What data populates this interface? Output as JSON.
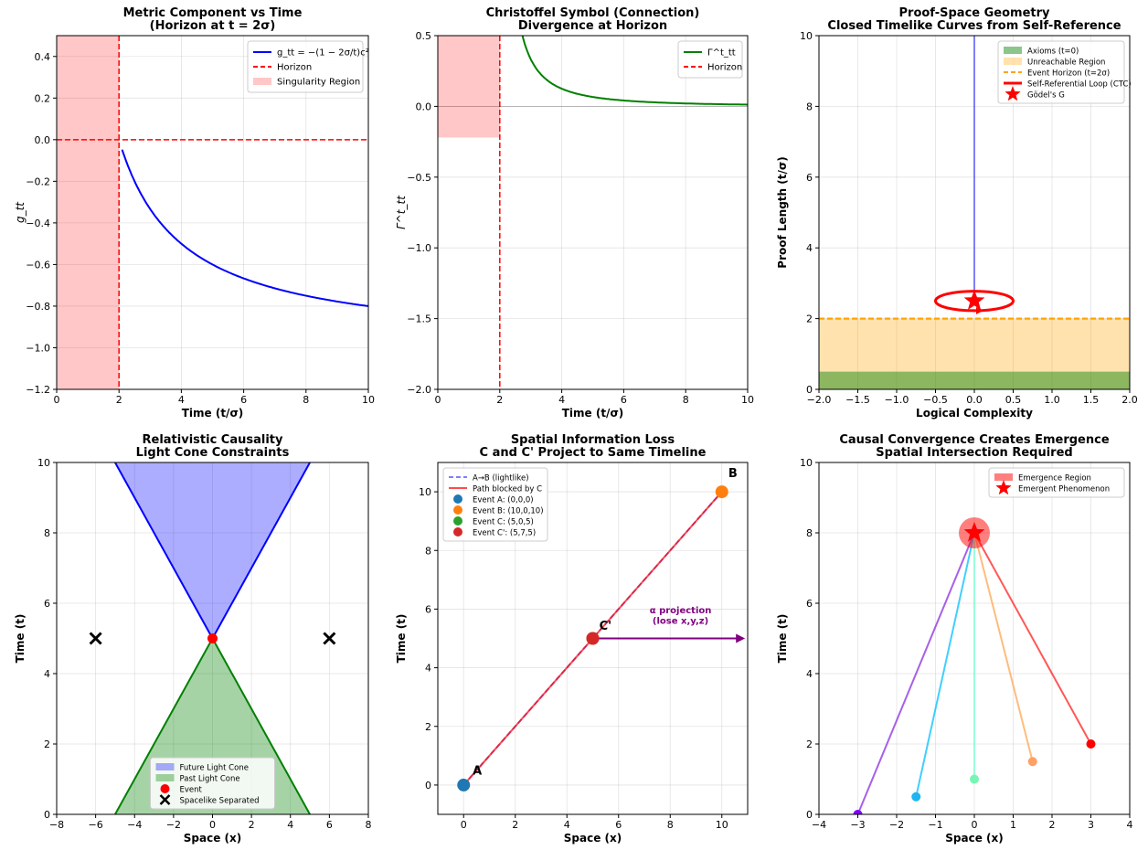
{
  "chart_data": [
    {
      "type": "line",
      "title": [
        "Metric Component vs Time",
        "(Horizon at t = 2σ)"
      ],
      "xlabel": "Time (t/σ)",
      "ylabel": "g_tt",
      "xlim": [
        0,
        10
      ],
      "ylim": [
        -1.2,
        0.5
      ],
      "xticks": [
        0,
        2,
        4,
        6,
        8,
        10
      ],
      "xtick_labels": [
        "0",
        "2",
        "4",
        "6",
        "8",
        "10"
      ],
      "yticks": [
        -1.2,
        -1.0,
        -0.8,
        -0.6,
        -0.4,
        -0.2,
        0.0,
        0.2,
        0.4
      ],
      "ytick_labels": [
        "−1.2",
        "−1.0",
        "−0.8",
        "−0.6",
        "−0.4",
        "−0.2",
        "0.0",
        "0.2",
        "0.4"
      ],
      "grid": true,
      "legend_position": "top-right",
      "series": [
        {
          "name": "g_tt = −(1 − 2σ/t)c²",
          "kind": "line",
          "color": "#0000ff",
          "function": "metric",
          "x_range": [
            2.1,
            10
          ]
        },
        {
          "name": "Horizon",
          "kind": "hline",
          "color": "#ff0000",
          "style": "dashed",
          "y": 0.0
        },
        {
          "kind": "vline",
          "color": "#ff0000",
          "style": "dashed",
          "x": 2
        },
        {
          "name": "Singularity Region",
          "kind": "span",
          "color": "#ff0000",
          "opacity": 0.22,
          "x": [
            0,
            2
          ]
        }
      ]
    },
    {
      "type": "line",
      "title": [
        "Christoffel Symbol (Connection)",
        "Divergence at Horizon"
      ],
      "xlabel": "Time (t/σ)",
      "ylabel": "Γ^t_tt",
      "xlim": [
        0,
        10
      ],
      "ylim": [
        -2.0,
        0.5
      ],
      "xticks": [
        0,
        2,
        4,
        6,
        8,
        10
      ],
      "xtick_labels": [
        "0",
        "2",
        "4",
        "6",
        "8",
        "10"
      ],
      "yticks": [
        -2.0,
        -1.5,
        -1.0,
        -0.5,
        0.0,
        0.5
      ],
      "ytick_labels": [
        "−2.0",
        "−1.5",
        "−1.0",
        "−0.5",
        "0.0",
        "0.5"
      ],
      "grid": true,
      "legend_position": "top-right",
      "series": [
        {
          "name": "Γ^t_tt",
          "kind": "line",
          "color": "#008000",
          "function": "christoffel",
          "x_range": [
            2.1,
            10
          ]
        },
        {
          "name": "Horizon",
          "kind": "vline",
          "color": "#ff0000",
          "style": "dashed",
          "x": 2
        },
        {
          "kind": "hline",
          "color": "#000000",
          "opacity": 0.3,
          "width": 0.8,
          "y": 0.0
        },
        {
          "kind": "rect",
          "color": "#ff0000",
          "opacity": 0.22,
          "x": [
            0,
            2
          ],
          "y": [
            -0.22,
            0.5
          ]
        }
      ]
    },
    {
      "type": "line",
      "title": [
        "Proof-Space Geometry",
        "Closed Timelike Curves from Self-Reference"
      ],
      "xlabel": "Logical Complexity",
      "ylabel": "Proof Length (t/σ)",
      "xlim": [
        -2.0,
        2.0
      ],
      "ylim": [
        0,
        10
      ],
      "xticks": [
        -2.0,
        -1.5,
        -1.0,
        -0.5,
        0.0,
        0.5,
        1.0,
        1.5,
        2.0
      ],
      "xtick_labels": [
        "−2.0",
        "−1.5",
        "−1.0",
        "−0.5",
        "0.0",
        "0.5",
        "1.0",
        "1.5",
        "2.0"
      ],
      "yticks": [
        0,
        2,
        4,
        6,
        8,
        10
      ],
      "ytick_labels": [
        "0",
        "2",
        "4",
        "6",
        "8",
        "10"
      ],
      "grid": true,
      "legend_position": "top-right",
      "series": [
        {
          "kind": "rect",
          "color": "#ffa500",
          "opacity": 0.32,
          "x": [
            -2,
            2
          ],
          "y": [
            0,
            2
          ]
        },
        {
          "name": "Axioms (t=0)",
          "kind": "rect",
          "color": "#008000",
          "opacity": 0.45,
          "x": [
            -2,
            2
          ],
          "y": [
            0,
            0.5
          ]
        },
        {
          "name": "Unreachable Region",
          "kind": "legend-only",
          "color": "#ffa500",
          "opacity": 0.32
        },
        {
          "kind": "vsegment",
          "color": "#0000ff",
          "opacity": 0.6,
          "x": 0,
          "y": [
            2.5,
            10
          ]
        },
        {
          "name": "Event Horizon (t=2σ)",
          "kind": "hline",
          "color": "#ffa500",
          "style": "dashed",
          "y": 2
        },
        {
          "name": "Self-Referential Loop (CTC)",
          "kind": "ellipse",
          "color": "#ff0000",
          "center": [
            0,
            2.5
          ],
          "radii": [
            0.5,
            0.5
          ]
        },
        {
          "name": "Gödel's G",
          "kind": "star",
          "color": "#ff0000",
          "points": [
            [
              0,
              2.5
            ]
          ]
        }
      ]
    },
    {
      "type": "area",
      "title": [
        "Relativistic Causality",
        "Light Cone Constraints"
      ],
      "xlabel": "Space (x)",
      "ylabel": "Time (t)",
      "xlim": [
        -8,
        8
      ],
      "ylim": [
        0,
        10
      ],
      "xticks": [
        -8,
        -6,
        -4,
        -2,
        0,
        2,
        4,
        6,
        8
      ],
      "xtick_labels": [
        "−8",
        "−6",
        "−4",
        "−2",
        "0",
        "2",
        "4",
        "6",
        "8"
      ],
      "yticks": [
        0,
        2,
        4,
        6,
        8,
        10
      ],
      "ytick_labels": [
        "0",
        "2",
        "4",
        "6",
        "8",
        "10"
      ],
      "grid": true,
      "legend_position": "bottom-center",
      "series": [
        {
          "name": "Future Light Cone",
          "kind": "polygon",
          "color": "#0000ff",
          "opacity": 0.32,
          "points": [
            [
              0,
              5
            ],
            [
              -5,
              10
            ],
            [
              5,
              10
            ]
          ],
          "edge": "#0000ff"
        },
        {
          "name": "Past Light Cone",
          "kind": "polygon",
          "color": "#008000",
          "opacity": 0.35,
          "points": [
            [
              0,
              5
            ],
            [
              -5,
              0
            ],
            [
              5,
              0
            ]
          ],
          "edge": "#008000"
        },
        {
          "name": "Event",
          "kind": "dots",
          "color": "#ff0000",
          "points": [
            [
              0,
              5
            ]
          ]
        },
        {
          "name": "Spacelike Separated",
          "kind": "x",
          "color": "#000000",
          "points": [
            [
              -6,
              5
            ],
            [
              6,
              5
            ]
          ]
        }
      ]
    },
    {
      "type": "scatter",
      "title": [
        "Spatial Information Loss",
        "C and C' Project to Same Timeline"
      ],
      "xlabel": "Space (x)",
      "ylabel": "Time (t)",
      "xlim": [
        -1,
        11
      ],
      "ylim": [
        -1,
        11
      ],
      "xticks": [
        0,
        2,
        4,
        6,
        8,
        10
      ],
      "xtick_labels": [
        "0",
        "2",
        "4",
        "6",
        "8",
        "10"
      ],
      "yticks": [
        0,
        2,
        4,
        6,
        8,
        10
      ],
      "ytick_labels": [
        "0",
        "2",
        "4",
        "6",
        "8",
        "10"
      ],
      "grid": true,
      "legend_position": "top-left",
      "series": [
        {
          "name": "A→B (lightlike)",
          "kind": "segment",
          "color": "#0000ff",
          "opacity": 0.5,
          "style": "dashed",
          "points": [
            [
              0,
              0
            ],
            [
              10,
              10
            ]
          ]
        },
        {
          "name": "Path blocked by C",
          "kind": "segment",
          "color": "#ff0000",
          "opacity": 0.7,
          "points": [
            [
              0,
              0
            ],
            [
              10,
              10
            ]
          ]
        },
        {
          "kind": "arrow",
          "color": "#800080",
          "points": [
            [
              5,
              5
            ],
            [
              10.9,
              5
            ]
          ]
        },
        {
          "name": "Event A: (0,0,0)",
          "kind": "dots",
          "color": "#1f77b4",
          "points": [
            [
              0,
              0
            ]
          ]
        },
        {
          "name": "Event B: (10,0,10)",
          "kind": "dots",
          "color": "#ff7f0e",
          "points": [
            [
              10,
              10
            ]
          ]
        },
        {
          "name": "Event C: (5,0,5)",
          "kind": "dots",
          "color": "#2ca02c",
          "points": [
            [
              5,
              5
            ]
          ]
        },
        {
          "name": "Event C': (5,7,5)",
          "kind": "dots",
          "color": "#d62728",
          "points": [
            [
              5,
              5
            ]
          ]
        }
      ],
      "annotations": [
        {
          "text": "A",
          "at": [
            0.35,
            0.35
          ],
          "color": "#000000"
        },
        {
          "text": "B",
          "at": [
            10.25,
            10.5
          ],
          "color": "#000000"
        },
        {
          "text": "C'",
          "at": [
            5.25,
            5.3
          ],
          "color": "#000000"
        },
        {
          "text": "α projection",
          "at": [
            8.4,
            5.85
          ],
          "color": "#800080"
        },
        {
          "text": "(lose x,y,z)",
          "at": [
            8.4,
            5.5
          ],
          "color": "#800080"
        }
      ]
    },
    {
      "type": "scatter",
      "title": [
        "Causal Convergence Creates Emergence",
        "Spatial Intersection Required"
      ],
      "xlabel": "Space (x)",
      "ylabel": "Time (t)",
      "xlim": [
        -4,
        4
      ],
      "ylim": [
        0,
        10
      ],
      "xticks": [
        -4,
        -3,
        -2,
        -1,
        0,
        1,
        2,
        3,
        4
      ],
      "xtick_labels": [
        "−4",
        "−3",
        "−2",
        "−1",
        "0",
        "1",
        "2",
        "3",
        "4"
      ],
      "yticks": [
        0,
        2,
        4,
        6,
        8,
        10
      ],
      "ytick_labels": [
        "0",
        "2",
        "4",
        "6",
        "8",
        "10"
      ],
      "grid": true,
      "legend_position": "top-right",
      "series": [
        {
          "kind": "segment",
          "color": "#8a2be2",
          "opacity": 0.75,
          "points": [
            [
              -3,
              0
            ],
            [
              0,
              8
            ]
          ]
        },
        {
          "kind": "segment",
          "color": "#00bfff",
          "opacity": 0.75,
          "points": [
            [
              -1.5,
              0.5
            ],
            [
              0,
              8
            ]
          ]
        },
        {
          "kind": "segment",
          "color": "#7fffd4",
          "opacity": 0.75,
          "points": [
            [
              0,
              1
            ],
            [
              0,
              8
            ]
          ]
        },
        {
          "kind": "segment",
          "color": "#ffa550",
          "opacity": 0.75,
          "points": [
            [
              1.5,
              1.5
            ],
            [
              0,
              8
            ]
          ]
        },
        {
          "kind": "segment",
          "color": "#ff2020",
          "opacity": 0.75,
          "points": [
            [
              3,
              2
            ],
            [
              0,
              8
            ]
          ]
        },
        {
          "kind": "dots",
          "colors": [
            "#8000ff",
            "#1eb4f0",
            "#78f5b4",
            "#ffa064",
            "#ff0000"
          ],
          "points": [
            [
              -3,
              0
            ],
            [
              -1.5,
              0.5
            ],
            [
              0,
              1
            ],
            [
              1.5,
              1.5
            ],
            [
              3,
              2
            ]
          ]
        },
        {
          "name": "Emergence Region",
          "kind": "circle",
          "color": "#ff0000",
          "opacity": 0.5,
          "center": [
            0,
            8
          ],
          "radius_data_x": 0.4
        },
        {
          "name": "Emergent Phenomenon",
          "kind": "star",
          "color": "#ff0000",
          "points": [
            [
              0,
              8
            ]
          ]
        }
      ]
    }
  ]
}
